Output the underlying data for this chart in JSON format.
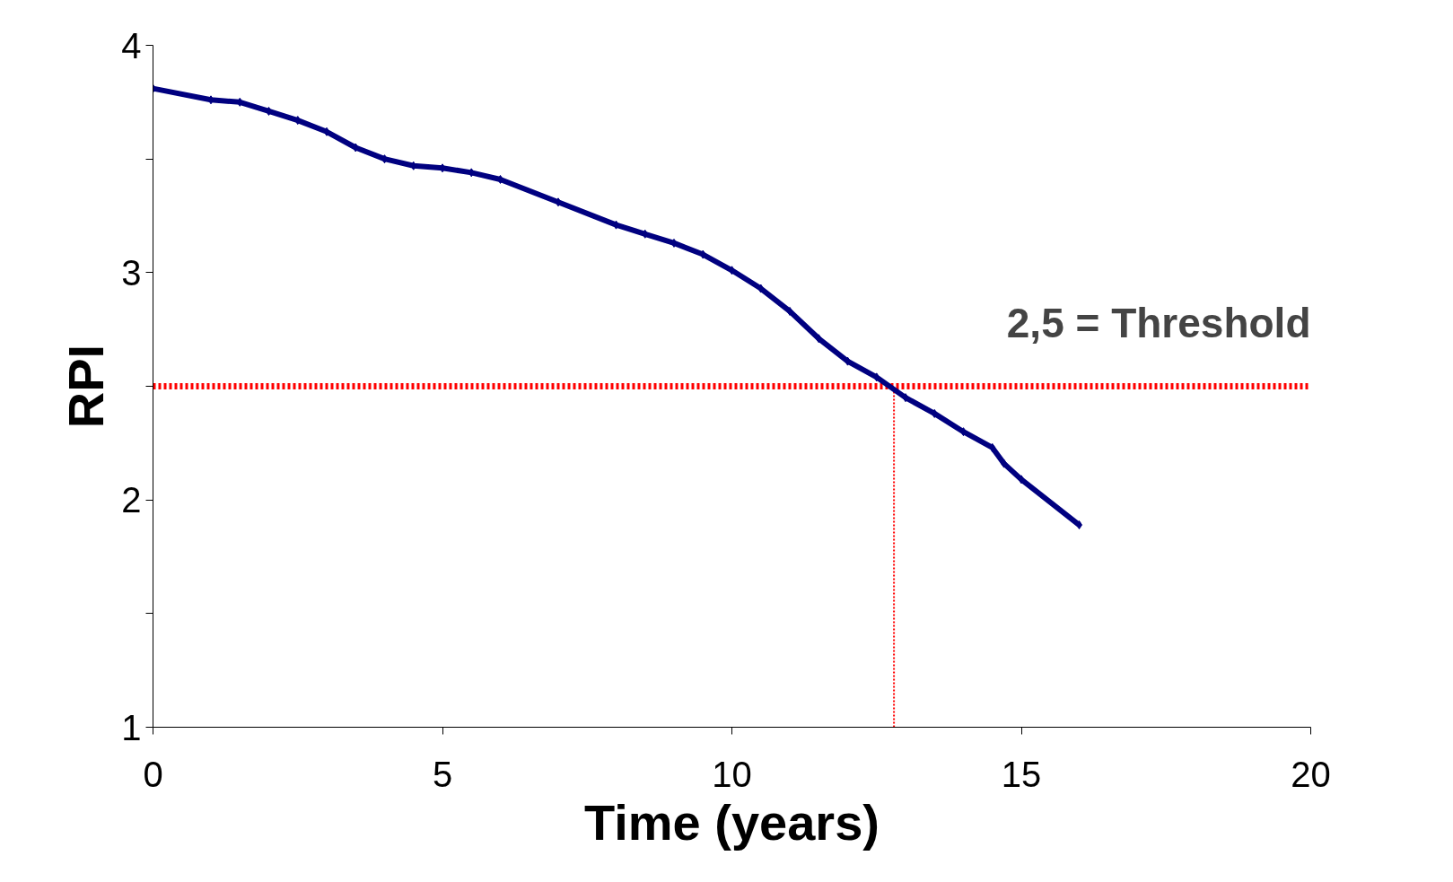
{
  "chart_data": {
    "type": "line",
    "xlabel": "Time (years)",
    "ylabel": "RPI",
    "x": [
      0,
      1,
      1.5,
      2,
      2.5,
      3,
      3.5,
      4,
      4.5,
      5,
      5.5,
      6,
      7,
      8,
      8.5,
      9,
      9.5,
      10,
      10.5,
      11,
      11.5,
      12,
      12.5,
      13,
      13.5,
      14,
      14.5,
      14.7,
      15,
      16
    ],
    "series": [
      {
        "color": "#000080",
        "values": [
          3.81,
          3.76,
          3.75,
          3.71,
          3.67,
          3.62,
          3.55,
          3.5,
          3.47,
          3.46,
          3.44,
          3.41,
          3.31,
          3.21,
          3.17,
          3.13,
          3.08,
          3.01,
          2.93,
          2.83,
          2.71,
          2.61,
          2.54,
          2.45,
          2.38,
          2.3,
          2.23,
          2.16,
          2.09,
          1.89
        ]
      }
    ],
    "xlim": [
      0,
      20
    ],
    "xticks": [
      0,
      5,
      10,
      15,
      20
    ],
    "ylim": [
      1,
      4
    ],
    "yticks": [
      1,
      {
        "value": 1.5,
        "label": null
      },
      2,
      {
        "value": 2.5,
        "label": null
      },
      3,
      {
        "value": 3.5,
        "label": null
      },
      4
    ],
    "ref_lines": [
      {
        "axis": "y",
        "value": 2.5,
        "label": "2,5 = Threshold",
        "color": "#ff0000",
        "line_style": "dotted"
      },
      {
        "axis": "x",
        "value": 12.8,
        "label": null,
        "color": "#ff0000",
        "line_style": "dotted"
      }
    ],
    "grid": false,
    "marker": "diamond",
    "line_style": "solid"
  }
}
